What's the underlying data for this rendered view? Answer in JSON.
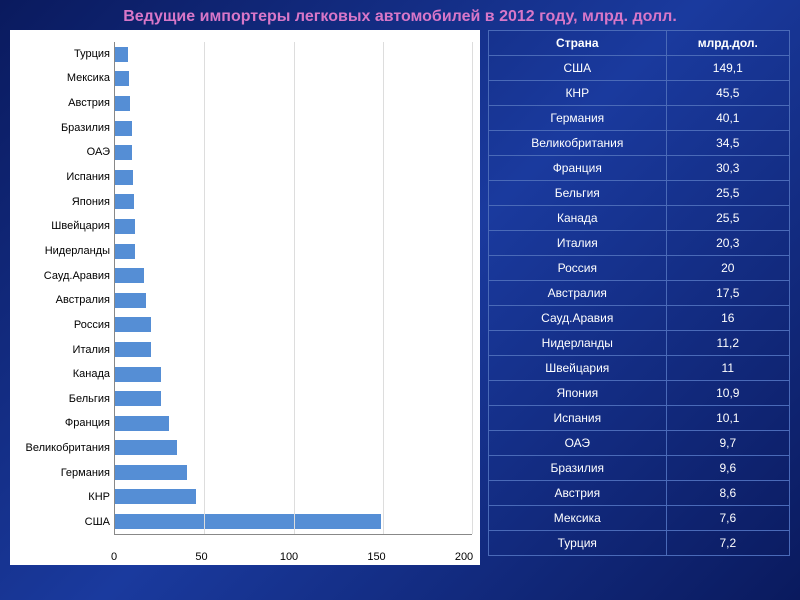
{
  "title": "Ведущие импортеры легковых автомобилей в 2012 году, млрд. долл.",
  "chart": {
    "type": "bar-horizontal",
    "bar_color": "#558ed5",
    "background_color": "#ffffff",
    "grid_color": "#dddddd",
    "axis_color": "#888888",
    "label_color": "#000000",
    "label_fontsize": 11,
    "xlim": [
      0,
      200
    ],
    "xticks": [
      0,
      50,
      100,
      150,
      200
    ],
    "categories": [
      "Турция",
      "Мексика",
      "Австрия",
      "Бразилия",
      "ОАЭ",
      "Испания",
      "Япония",
      "Швейцария",
      "Нидерланды",
      "Сауд.Аравия",
      "Австралия",
      "Россия",
      "Италия",
      "Канада",
      "Бельгия",
      "Франция",
      "Великобритания",
      "Германия",
      "КНР",
      "США"
    ],
    "values": [
      7.2,
      7.6,
      8.6,
      9.6,
      9.7,
      10.1,
      10.9,
      11,
      11.2,
      16,
      17.5,
      20,
      20.3,
      25.5,
      25.5,
      30.3,
      34.5,
      40.1,
      45.5,
      149.1
    ]
  },
  "table": {
    "headers": [
      "Страна",
      "млрд.дол."
    ],
    "rows": [
      [
        "США",
        "149,1"
      ],
      [
        "КНР",
        "45,5"
      ],
      [
        "Германия",
        "40,1"
      ],
      [
        "Великобритания",
        "34,5"
      ],
      [
        "Франция",
        "30,3"
      ],
      [
        "Бельгия",
        "25,5"
      ],
      [
        "Канада",
        "25,5"
      ],
      [
        "Италия",
        "20,3"
      ],
      [
        "Россия",
        "20"
      ],
      [
        "Австралия",
        "17,5"
      ],
      [
        "Сауд.Аравия",
        "16"
      ],
      [
        "Нидерланды",
        "11,2"
      ],
      [
        "Швейцария",
        "11"
      ],
      [
        "Япония",
        "10,9"
      ],
      [
        "Испания",
        "10,1"
      ],
      [
        "ОАЭ",
        "9,7"
      ],
      [
        "Бразилия",
        "9,6"
      ],
      [
        "Австрия",
        "8,6"
      ],
      [
        "Мексика",
        "7,6"
      ],
      [
        "Турция",
        "7,2"
      ]
    ],
    "header_color": "#ffffff",
    "cell_color": "#ffffff",
    "border_color": "#4a6ab8",
    "fontsize": 12
  },
  "colors": {
    "title": "#d877c8",
    "bg_gradient_start": "#0a1a5e",
    "bg_gradient_mid": "#1a3a9e"
  }
}
